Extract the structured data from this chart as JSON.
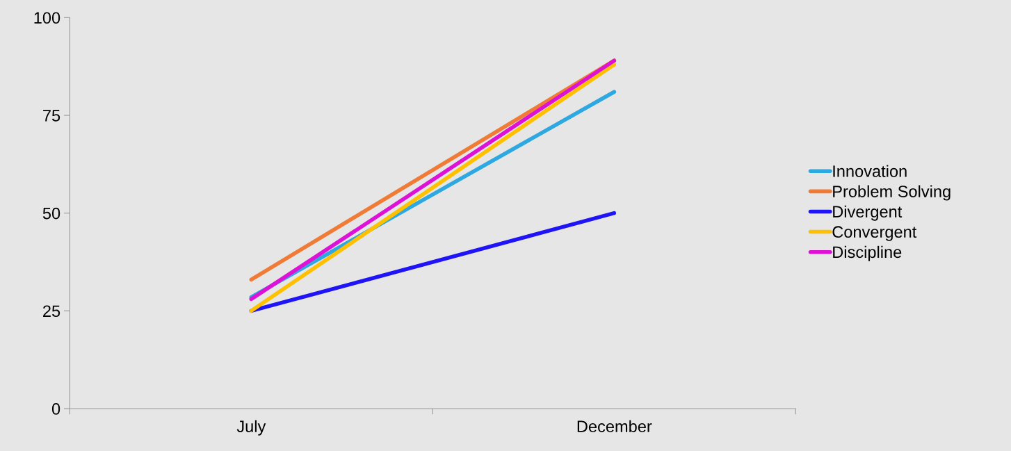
{
  "chart_data": {
    "type": "line",
    "categories": [
      "July",
      "December"
    ],
    "series": [
      {
        "name": "Innovation",
        "color": "#2ea8e0",
        "values": [
          28.5,
          81
        ]
      },
      {
        "name": "Problem Solving",
        "color": "#f07b37",
        "values": [
          33,
          89
        ]
      },
      {
        "name": "Divergent",
        "color": "#1f14f5",
        "values": [
          25,
          50
        ]
      },
      {
        "name": "Convergent",
        "color": "#ffc000",
        "values": [
          25,
          88
        ]
      },
      {
        "name": "Discipline",
        "color": "#dd12d6",
        "values": [
          28,
          89
        ]
      }
    ],
    "ylim": [
      0,
      100
    ],
    "yticks": [
      0,
      25,
      50,
      75,
      100
    ],
    "grid": false,
    "legend": "right",
    "marker": "none",
    "line_style": "solid"
  }
}
